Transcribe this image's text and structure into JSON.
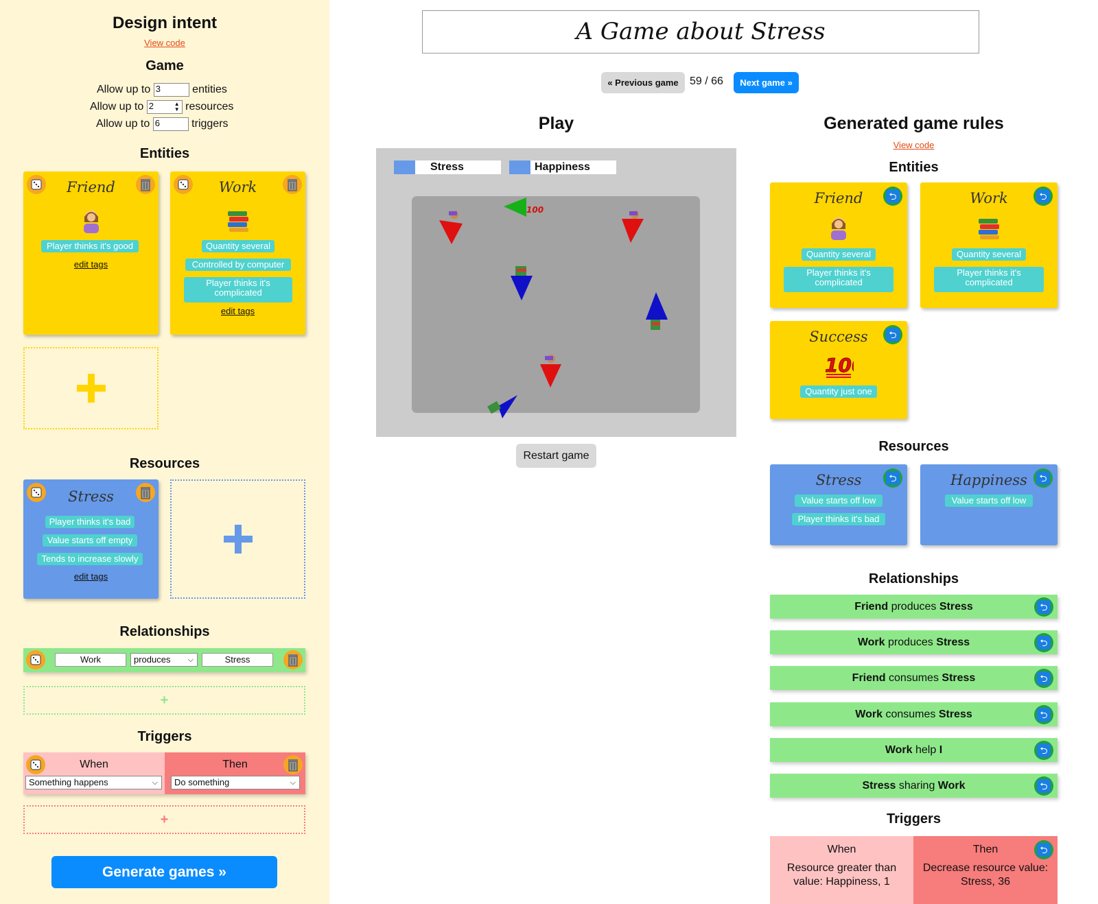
{
  "left": {
    "title": "Design intent",
    "view_code": "View code",
    "game_heading": "Game",
    "allow_up_to": "Allow up to",
    "entities_limit": "3",
    "entities_word": "entities",
    "resources_limit": "2",
    "resources_word": "resources",
    "triggers_limit": "6",
    "triggers_word": "triggers",
    "entities_heading": "Entities",
    "entity_cards": [
      {
        "name": "Friend",
        "icon": "woman-tipping-hand-icon",
        "tags": [
          "Player thinks it's good"
        ],
        "edit": "edit tags"
      },
      {
        "name": "Work",
        "icon": "books-icon",
        "tags": [
          "Quantity several",
          "Controlled by computer",
          "Player thinks it's complicated"
        ],
        "edit": "edit tags"
      }
    ],
    "resources_heading": "Resources",
    "resource_cards": [
      {
        "name": "Stress",
        "tags": [
          "Player thinks it's bad",
          "Value starts off empty",
          "Tends to increase slowly"
        ],
        "edit": "edit tags"
      }
    ],
    "relationships_heading": "Relationships",
    "relationship": {
      "a": "Work",
      "verb": "produces",
      "b": "Stress"
    },
    "triggers_heading": "Triggers",
    "trigger": {
      "when": "When",
      "then": "Then",
      "when_value": "Something happens",
      "then_value": "Do something"
    },
    "generate": "Generate games »",
    "add_symbol": "+"
  },
  "header": {
    "title": "A Game about Stress",
    "prev": "« Previous game",
    "counter": "59 / 66",
    "next": "Next game »"
  },
  "play": {
    "heading": "Play",
    "hud": [
      {
        "label": "Stress",
        "fill": 0.2
      },
      {
        "label": "Happiness",
        "fill": 0.2
      }
    ],
    "restart": "Restart game"
  },
  "rules": {
    "heading": "Generated game rules",
    "view_code": "View code",
    "entities_heading": "Entities",
    "entity_cards": [
      {
        "name": "Friend",
        "icon": "woman-tipping-hand-icon",
        "tags": [
          "Quantity several",
          "Player thinks it's complicated"
        ]
      },
      {
        "name": "Work",
        "icon": "books-icon",
        "tags": [
          "Quantity several",
          "Player thinks it's complicated"
        ]
      },
      {
        "name": "Success",
        "icon": "hundred-points-icon",
        "tags": [
          "Quantity just one"
        ]
      }
    ],
    "resources_heading": "Resources",
    "resource_cards": [
      {
        "name": "Stress",
        "tags": [
          "Value starts off low",
          "Player thinks it's bad"
        ]
      },
      {
        "name": "Happiness",
        "tags": [
          "Value starts off low"
        ]
      }
    ],
    "relationships_heading": "Relationships",
    "relationships": [
      {
        "a": "Friend",
        "verb": "produces",
        "b": "Stress"
      },
      {
        "a": "Work",
        "verb": "produces",
        "b": "Stress"
      },
      {
        "a": "Friend",
        "verb": "consumes",
        "b": "Stress"
      },
      {
        "a": "Work",
        "verb": "consumes",
        "b": "Stress"
      },
      {
        "a": "Work",
        "verb": "help",
        "b": "I"
      },
      {
        "a": "Stress",
        "verb": "sharing",
        "b": "Work"
      }
    ],
    "triggers_heading": "Triggers",
    "trigger": {
      "when": "When",
      "then": "Then",
      "when_text": "Resource greater than value: Happiness, 1",
      "then_text": "Decrease resource value: Stress, 36"
    }
  },
  "colors": {
    "entity_card": "#ffd500",
    "resource_card": "#6699e8",
    "tag": "#4fd1cf",
    "relationship": "#8ee88a",
    "trigger_when": "#ffc2c2",
    "trigger_then": "#f77c7c",
    "primary_button": "#0a8cff"
  }
}
